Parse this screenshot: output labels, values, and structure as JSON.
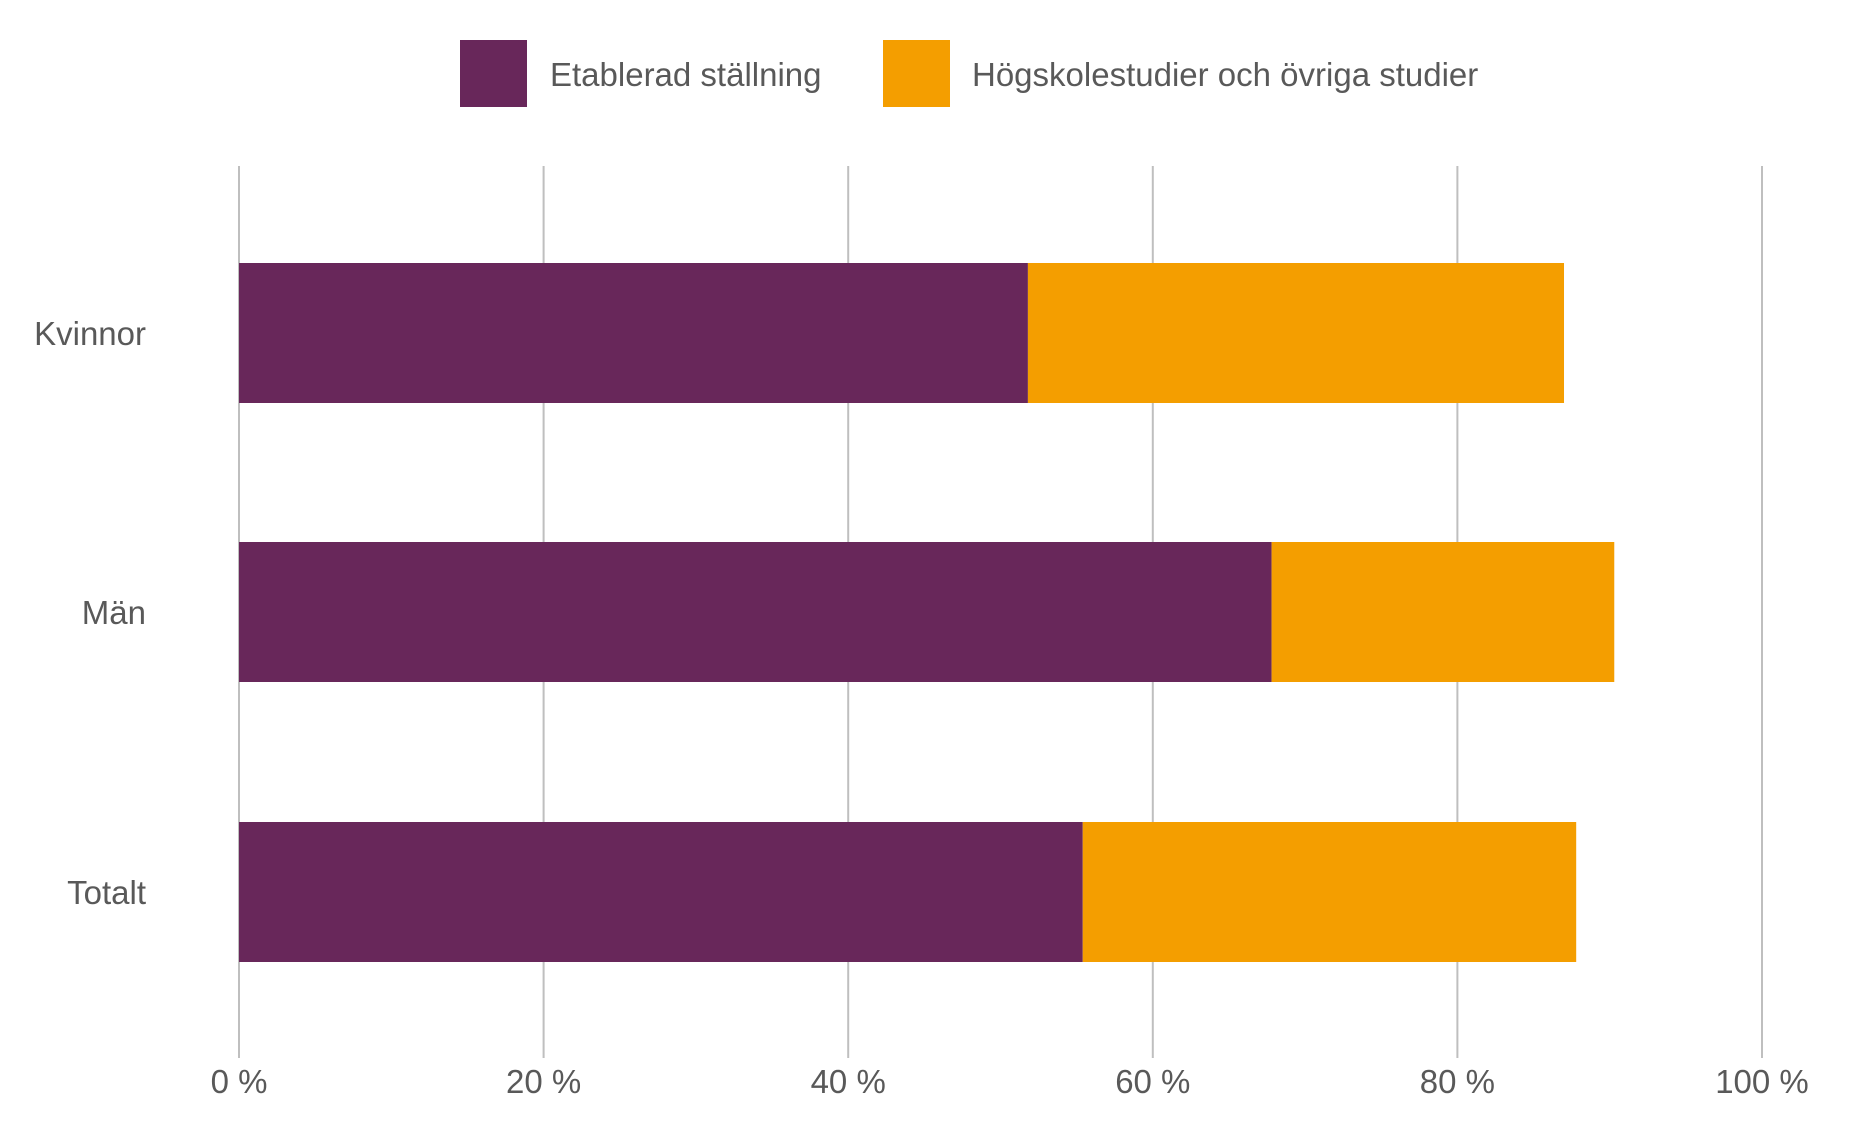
{
  "chart_data": {
    "type": "bar",
    "orientation": "horizontal",
    "stacked": true,
    "categories": [
      "Kvinnor",
      "Män",
      "Totalt"
    ],
    "series": [
      {
        "name": "Etablerad ställning",
        "color": "#68275a",
        "values": [
          51.8,
          67.8,
          55.4
        ]
      },
      {
        "name": "Högskolestudier och övriga studier",
        "color": "#f49e00",
        "values": [
          35.2,
          22.5,
          32.4
        ]
      }
    ],
    "xlim": [
      0,
      100
    ],
    "xticks": [
      0,
      20,
      40,
      60,
      80,
      100
    ],
    "xtick_labels": [
      "0 %",
      "20 %",
      "40 %",
      "60 %",
      "80 %",
      "100 %"
    ],
    "grid": true,
    "legend_position": "top-center",
    "title": "",
    "xlabel": "",
    "ylabel": ""
  }
}
